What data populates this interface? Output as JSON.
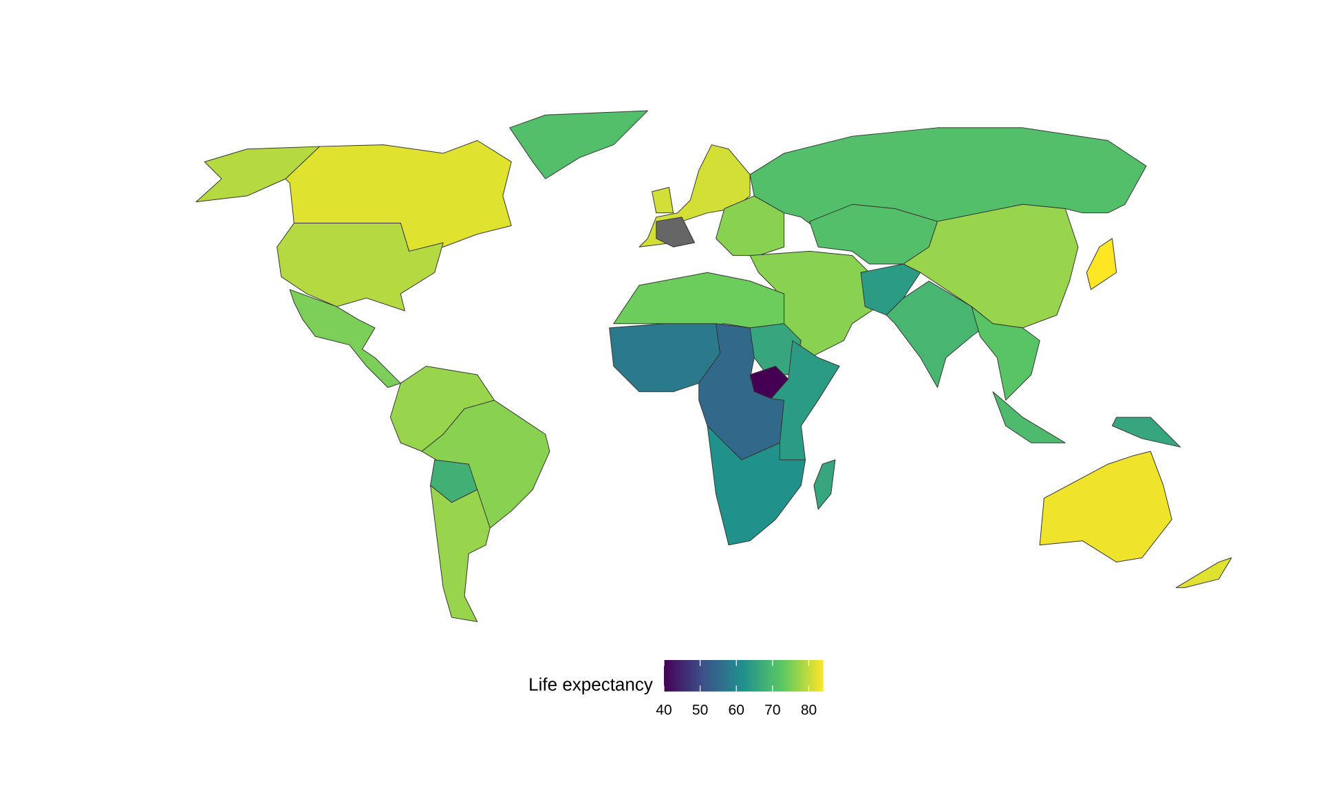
{
  "chart_data": {
    "type": "choropleth",
    "legend_title": "Life expectancy",
    "colormap": "viridis",
    "colorlim": [
      40,
      84
    ],
    "ticks": [
      40,
      50,
      60,
      70,
      80
    ],
    "na_color": "#666666",
    "border_color": "#333333",
    "values": [
      82,
      79,
      79,
      75,
      71,
      77,
      76,
      68,
      77,
      81,
      null,
      81,
      76,
      71,
      71,
      77,
      84,
      76,
      64,
      69,
      72,
      70,
      66,
      83,
      82,
      74,
      58,
      55,
      66,
      40,
      64,
      62,
      66
    ]
  }
}
